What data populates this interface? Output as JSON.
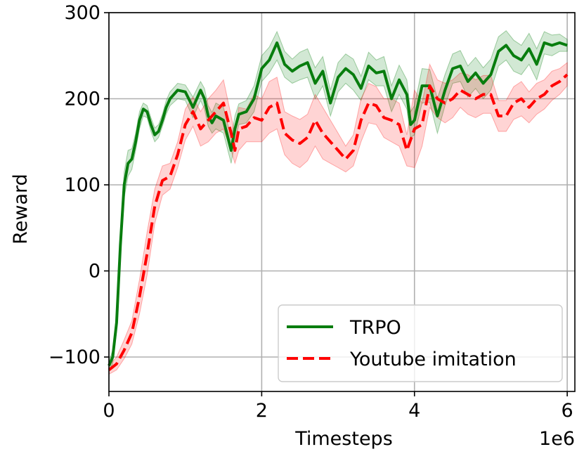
{
  "chart_data": {
    "type": "line",
    "xlabel": "Timesteps",
    "ylabel": "Reward",
    "x_offset_label": "1e6",
    "xlim": [
      0,
      6.1
    ],
    "ylim": [
      -140,
      300
    ],
    "xticks": [
      0,
      2,
      4,
      6
    ],
    "xtick_labels": [
      "0",
      "2",
      "4",
      "6"
    ],
    "yticks": [
      -100,
      0,
      100,
      200,
      300
    ],
    "ytick_labels": [
      "−100",
      "0",
      "100",
      "200",
      "300"
    ],
    "grid": true,
    "legend": "bottom-right",
    "series": [
      {
        "name": "TRPO",
        "color": "#087d0e",
        "style": "solid",
        "x": [
          0.0,
          0.05,
          0.1,
          0.15,
          0.2,
          0.25,
          0.3,
          0.35,
          0.4,
          0.45,
          0.5,
          0.55,
          0.6,
          0.65,
          0.7,
          0.75,
          0.8,
          0.9,
          1.0,
          1.1,
          1.2,
          1.25,
          1.3,
          1.35,
          1.4,
          1.5,
          1.6,
          1.65,
          1.7,
          1.8,
          1.9,
          2.0,
          2.1,
          2.2,
          2.3,
          2.4,
          2.5,
          2.6,
          2.7,
          2.8,
          2.9,
          3.0,
          3.1,
          3.2,
          3.3,
          3.4,
          3.5,
          3.6,
          3.7,
          3.8,
          3.9,
          3.95,
          4.0,
          4.1,
          4.2,
          4.3,
          4.4,
          4.5,
          4.6,
          4.7,
          4.8,
          4.9,
          5.0,
          5.1,
          5.2,
          5.3,
          5.4,
          5.5,
          5.6,
          5.7,
          5.8,
          5.9,
          6.0
        ],
        "y": [
          -110,
          -100,
          -60,
          30,
          100,
          125,
          130,
          150,
          175,
          188,
          185,
          170,
          158,
          162,
          175,
          190,
          200,
          210,
          208,
          190,
          210,
          200,
          180,
          172,
          180,
          175,
          140,
          165,
          182,
          185,
          200,
          235,
          245,
          265,
          240,
          232,
          238,
          242,
          218,
          232,
          195,
          225,
          235,
          228,
          212,
          238,
          230,
          232,
          200,
          222,
          205,
          170,
          175,
          215,
          215,
          180,
          210,
          235,
          238,
          220,
          230,
          218,
          228,
          255,
          262,
          250,
          245,
          258,
          240,
          265,
          262,
          265,
          262
        ],
        "band_lower": [
          -115,
          -108,
          -70,
          15,
          85,
          110,
          118,
          140,
          165,
          180,
          178,
          162,
          150,
          155,
          168,
          182,
          192,
          200,
          198,
          178,
          198,
          188,
          168,
          160,
          165,
          160,
          125,
          150,
          170,
          172,
          185,
          220,
          230,
          245,
          225,
          218,
          222,
          225,
          200,
          215,
          180,
          208,
          218,
          210,
          198,
          222,
          215,
          215,
          185,
          205,
          188,
          155,
          158,
          195,
          196,
          160,
          192,
          218,
          220,
          202,
          212,
          200,
          210,
          238,
          245,
          232,
          228,
          240,
          222,
          252,
          250,
          255,
          255
        ],
        "band_upper": [
          -105,
          -92,
          -50,
          45,
          115,
          140,
          142,
          160,
          185,
          195,
          192,
          178,
          166,
          170,
          182,
          198,
          208,
          218,
          216,
          202,
          220,
          212,
          192,
          184,
          195,
          190,
          155,
          180,
          194,
          198,
          215,
          250,
          260,
          278,
          255,
          246,
          254,
          258,
          236,
          249,
          210,
          242,
          252,
          246,
          226,
          254,
          245,
          249,
          215,
          239,
          222,
          185,
          192,
          235,
          234,
          200,
          228,
          252,
          256,
          238,
          248,
          236,
          246,
          272,
          279,
          268,
          262,
          276,
          258,
          278,
          274,
          275,
          269
        ]
      },
      {
        "name": "Youtube imitation",
        "color": "#ff0000",
        "style": "dashed",
        "x": [
          0.0,
          0.1,
          0.2,
          0.3,
          0.4,
          0.5,
          0.6,
          0.7,
          0.8,
          0.9,
          1.0,
          1.1,
          1.2,
          1.3,
          1.4,
          1.5,
          1.6,
          1.65,
          1.7,
          1.8,
          1.9,
          2.0,
          2.1,
          2.2,
          2.3,
          2.4,
          2.5,
          2.6,
          2.7,
          2.8,
          2.9,
          3.0,
          3.1,
          3.2,
          3.3,
          3.4,
          3.5,
          3.6,
          3.7,
          3.8,
          3.9,
          4.0,
          4.1,
          4.2,
          4.3,
          4.4,
          4.5,
          4.6,
          4.7,
          4.8,
          4.9,
          5.0,
          5.1,
          5.2,
          5.3,
          5.4,
          5.5,
          5.6,
          5.7,
          5.8,
          5.9,
          6.0
        ],
        "y": [
          -115,
          -108,
          -92,
          -72,
          -30,
          20,
          75,
          105,
          110,
          135,
          170,
          185,
          165,
          175,
          185,
          195,
          160,
          140,
          165,
          168,
          178,
          175,
          190,
          195,
          160,
          152,
          148,
          155,
          175,
          160,
          150,
          140,
          130,
          140,
          175,
          195,
          192,
          178,
          175,
          170,
          140,
          165,
          170,
          215,
          200,
          195,
          200,
          210,
          205,
          200,
          205,
          205,
          180,
          180,
          195,
          200,
          190,
          200,
          205,
          215,
          220,
          228
        ],
        "band_lower": [
          -120,
          -115,
          -102,
          -85,
          -50,
          -5,
          55,
          88,
          95,
          120,
          152,
          168,
          145,
          150,
          160,
          165,
          140,
          125,
          140,
          150,
          150,
          150,
          160,
          165,
          135,
          125,
          120,
          128,
          145,
          130,
          125,
          120,
          115,
          122,
          150,
          172,
          170,
          155,
          150,
          145,
          122,
          120,
          145,
          190,
          178,
          172,
          178,
          190,
          182,
          178,
          183,
          183,
          162,
          162,
          176,
          180,
          172,
          182,
          188,
          198,
          205,
          215
        ],
        "band_upper": [
          -110,
          -100,
          -80,
          -58,
          -10,
          45,
          95,
          122,
          125,
          150,
          188,
          202,
          185,
          200,
          210,
          222,
          180,
          158,
          190,
          188,
          205,
          200,
          220,
          225,
          185,
          180,
          176,
          182,
          205,
          190,
          175,
          160,
          145,
          158,
          200,
          218,
          214,
          200,
          200,
          195,
          158,
          210,
          195,
          240,
          222,
          218,
          222,
          230,
          228,
          222,
          227,
          227,
          198,
          198,
          214,
          220,
          208,
          218,
          222,
          232,
          235,
          242
        ]
      }
    ]
  }
}
